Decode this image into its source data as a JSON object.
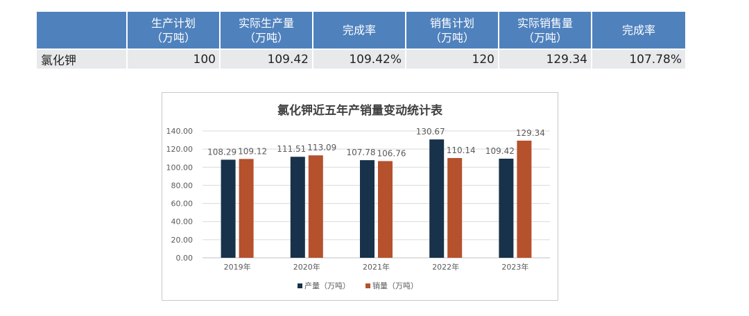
{
  "table": {
    "headers": [
      {
        "lines": [
          ""
        ]
      },
      {
        "lines": [
          "生产计划",
          "（万吨）"
        ]
      },
      {
        "lines": [
          "实际生产量",
          "（万吨）"
        ]
      },
      {
        "lines": [
          "完成率"
        ]
      },
      {
        "lines": [
          "销售计划",
          "（万吨）"
        ]
      },
      {
        "lines": [
          "实际销售量",
          "（万吨）"
        ]
      },
      {
        "lines": [
          "完成率"
        ]
      }
    ],
    "row": [
      "氯化钾",
      "100",
      "109.42",
      "109.42%",
      "120",
      "129.34",
      "107.78%"
    ]
  },
  "colors": {
    "header_bg": "#4f81bd",
    "cell_bg": "#e8e9eb",
    "production": "#17324a",
    "sales": "#b5512d"
  },
  "chart_data": {
    "type": "bar",
    "title": "氯化钾近五年产销量变动统计表",
    "categories": [
      "2019年",
      "2020年",
      "2021年",
      "2022年",
      "2023年"
    ],
    "series": [
      {
        "name": "产量（万吨）",
        "values": [
          108.29,
          111.51,
          107.78,
          130.67,
          109.42
        ],
        "color": "#17324a"
      },
      {
        "name": "销量（万吨）",
        "values": [
          109.12,
          113.09,
          106.76,
          110.14,
          129.34
        ],
        "color": "#b5512d"
      }
    ],
    "ylim": [
      0,
      140
    ],
    "yticks": [
      "0.00",
      "20.00",
      "40.00",
      "60.00",
      "80.00",
      "100.00",
      "120.00",
      "140.00"
    ],
    "grid": true,
    "legend_position": "bottom"
  }
}
